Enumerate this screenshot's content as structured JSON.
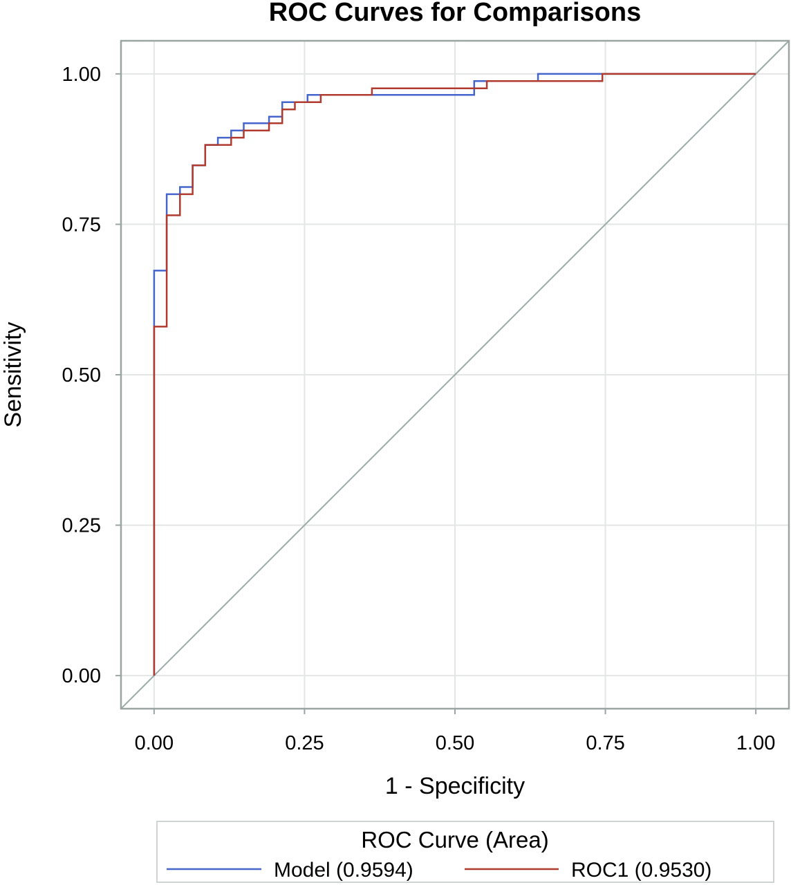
{
  "chart_data": {
    "type": "line",
    "title": "ROC Curves for Comparisons",
    "xlabel": "1 - Specificity",
    "ylabel": "Sensitivity",
    "xlim": [
      -0.055,
      1.055
    ],
    "ylim": [
      -0.055,
      1.055
    ],
    "x_ticks": [
      "0.00",
      "0.25",
      "0.50",
      "0.75",
      "1.00"
    ],
    "y_ticks": [
      "0.00",
      "0.25",
      "0.50",
      "0.75",
      "1.00"
    ],
    "grid": true,
    "legend": {
      "title": "ROC Curve (Area)",
      "position": "bottom"
    },
    "series": [
      {
        "name": "Model",
        "area": "(0.9594)",
        "color": "#4466cc",
        "step": true,
        "points": [
          [
            0.0,
            0.0
          ],
          [
            0.0,
            0.58
          ],
          [
            0.0,
            0.673
          ],
          [
            0.021,
            0.673
          ],
          [
            0.021,
            0.8
          ],
          [
            0.043,
            0.8
          ],
          [
            0.043,
            0.812
          ],
          [
            0.064,
            0.812
          ],
          [
            0.064,
            0.848
          ],
          [
            0.085,
            0.848
          ],
          [
            0.085,
            0.882
          ],
          [
            0.106,
            0.882
          ],
          [
            0.106,
            0.894
          ],
          [
            0.128,
            0.894
          ],
          [
            0.128,
            0.906
          ],
          [
            0.149,
            0.906
          ],
          [
            0.149,
            0.918
          ],
          [
            0.191,
            0.918
          ],
          [
            0.191,
            0.929
          ],
          [
            0.213,
            0.929
          ],
          [
            0.213,
            0.953
          ],
          [
            0.255,
            0.953
          ],
          [
            0.255,
            0.965
          ],
          [
            0.532,
            0.965
          ],
          [
            0.532,
            0.988
          ],
          [
            0.638,
            0.988
          ],
          [
            0.638,
            1.0
          ],
          [
            1.0,
            1.0
          ]
        ]
      },
      {
        "name": "ROC1",
        "area": "(0.9530)",
        "color": "#b03a2e",
        "step": true,
        "points": [
          [
            0.0,
            0.0
          ],
          [
            0.0,
            0.58
          ],
          [
            0.021,
            0.58
          ],
          [
            0.021,
            0.765
          ],
          [
            0.043,
            0.765
          ],
          [
            0.043,
            0.8
          ],
          [
            0.064,
            0.8
          ],
          [
            0.064,
            0.848
          ],
          [
            0.085,
            0.848
          ],
          [
            0.085,
            0.882
          ],
          [
            0.128,
            0.882
          ],
          [
            0.128,
            0.894
          ],
          [
            0.149,
            0.894
          ],
          [
            0.149,
            0.906
          ],
          [
            0.191,
            0.906
          ],
          [
            0.191,
            0.918
          ],
          [
            0.213,
            0.918
          ],
          [
            0.213,
            0.941
          ],
          [
            0.234,
            0.941
          ],
          [
            0.234,
            0.953
          ],
          [
            0.277,
            0.953
          ],
          [
            0.277,
            0.965
          ],
          [
            0.362,
            0.965
          ],
          [
            0.362,
            0.976
          ],
          [
            0.553,
            0.976
          ],
          [
            0.553,
            0.988
          ],
          [
            0.745,
            0.988
          ],
          [
            0.745,
            1.0
          ],
          [
            1.0,
            1.0
          ]
        ]
      }
    ],
    "reference_line": {
      "points": [
        [
          0.0,
          0.0
        ],
        [
          1.0,
          1.0
        ]
      ],
      "color": "#9aaaa8"
    },
    "colors": {
      "frame": "#9aa5a3",
      "grid": "#e3e6e5",
      "background": "#ffffff"
    }
  }
}
